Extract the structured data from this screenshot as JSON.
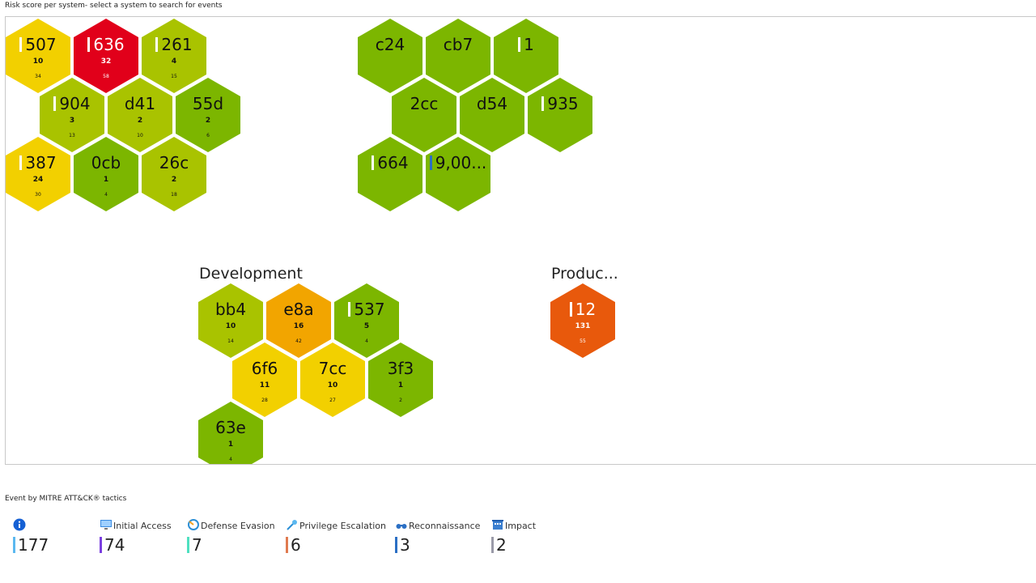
{
  "caption_top": "Risk score per system- select a system to search for events",
  "caption_bottom": "Event by MITRE ATT&CK® tactics",
  "groups": {
    "development": "Development",
    "production": "Produc..."
  },
  "hexes": [
    {
      "name": "507",
      "primary": "10",
      "secondary": "34",
      "color": "#f2d000",
      "bar": true
    },
    {
      "name": "636",
      "primary": "32",
      "secondary": "58",
      "color": "#e1001a",
      "bar": true
    },
    {
      "name": "261",
      "primary": "4",
      "secondary": "15",
      "color": "#a9c300",
      "bar": true
    },
    {
      "name": "904",
      "primary": "3",
      "secondary": "13",
      "color": "#a9c300",
      "bar": true
    },
    {
      "name": "d41",
      "primary": "2",
      "secondary": "10",
      "color": "#a9c300",
      "bar": false
    },
    {
      "name": "55d",
      "primary": "2",
      "secondary": "6",
      "color": "#7cb600",
      "bar": false
    },
    {
      "name": "387",
      "primary": "24",
      "secondary": "30",
      "color": "#f2d000",
      "bar": true
    },
    {
      "name": "0cb",
      "primary": "1",
      "secondary": "4",
      "color": "#7cb600",
      "bar": false
    },
    {
      "name": "26c",
      "primary": "2",
      "secondary": "18",
      "color": "#a9c300",
      "bar": false
    },
    {
      "name": "c24",
      "primary": "",
      "secondary": "",
      "color": "#7cb600",
      "bar": false
    },
    {
      "name": "cb7",
      "primary": "",
      "secondary": "",
      "color": "#7cb600",
      "bar": false
    },
    {
      "name": "1",
      "primary": "",
      "secondary": "",
      "color": "#7cb600",
      "bar": true
    },
    {
      "name": "2cc",
      "primary": "",
      "secondary": "",
      "color": "#7cb600",
      "bar": false
    },
    {
      "name": "d54",
      "primary": "",
      "secondary": "",
      "color": "#7cb600",
      "bar": false
    },
    {
      "name": "935",
      "primary": "",
      "secondary": "",
      "color": "#7cb600",
      "bar": true
    },
    {
      "name": "664",
      "primary": "",
      "secondary": "",
      "color": "#7cb600",
      "bar": true
    },
    {
      "name": "9,00...",
      "primary": "",
      "secondary": "",
      "color": "#7cb600",
      "bar": true,
      "barColor": "#2b6fc4"
    },
    {
      "name": "bb4",
      "primary": "10",
      "secondary": "14",
      "color": "#a9c300",
      "bar": false
    },
    {
      "name": "e8a",
      "primary": "16",
      "secondary": "42",
      "color": "#f2a500",
      "bar": false
    },
    {
      "name": "537",
      "primary": "5",
      "secondary": "4",
      "color": "#7cb600",
      "bar": true
    },
    {
      "name": "6f6",
      "primary": "11",
      "secondary": "28",
      "color": "#f2d000",
      "bar": false
    },
    {
      "name": "7cc",
      "primary": "10",
      "secondary": "27",
      "color": "#f2d000",
      "bar": false
    },
    {
      "name": "3f3",
      "primary": "1",
      "secondary": "2",
      "color": "#7cb600",
      "bar": false
    },
    {
      "name": "63e",
      "primary": "1",
      "secondary": "4",
      "color": "#7cb600",
      "bar": false
    },
    {
      "name": "12",
      "primary": "131",
      "secondary": "55",
      "color": "#e8590c",
      "bar": true
    }
  ],
  "tactics": [
    {
      "label": "",
      "value": "177",
      "barColor": "#5bb8f0",
      "icon": "info-icon"
    },
    {
      "label": "Initial Access",
      "value": "74",
      "barColor": "#7b3fe0",
      "icon": "monitor-icon"
    },
    {
      "label": "Defense Evasion",
      "value": "7",
      "barColor": "#4fe0c0",
      "icon": "shield-swirl-icon"
    },
    {
      "label": "Privilege Escalation",
      "value": "6",
      "barColor": "#e07a4f",
      "icon": "key-icon"
    },
    {
      "label": "Reconnaissance",
      "value": "3",
      "barColor": "#2b6fc4",
      "icon": "binoculars-icon"
    },
    {
      "label": "Impact",
      "value": "2",
      "barColor": "#9a9aa8",
      "icon": "building-icon"
    }
  ]
}
